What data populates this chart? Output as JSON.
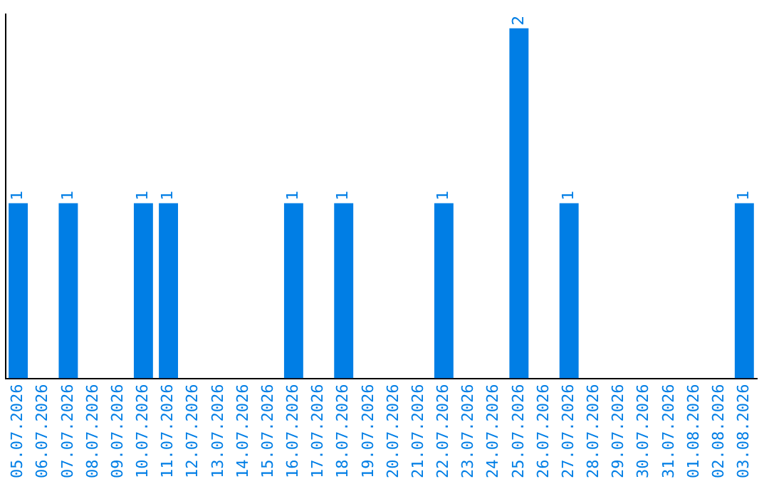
{
  "chart_data": {
    "type": "bar",
    "categories": [
      "05.07.2026",
      "06.07.2026",
      "07.07.2026",
      "08.07.2026",
      "09.07.2026",
      "10.07.2026",
      "11.07.2026",
      "12.07.2026",
      "13.07.2026",
      "14.07.2026",
      "15.07.2026",
      "16.07.2026",
      "17.07.2026",
      "18.07.2026",
      "19.07.2026",
      "20.07.2026",
      "21.07.2026",
      "22.07.2026",
      "23.07.2026",
      "24.07.2026",
      "25.07.2026",
      "26.07.2026",
      "27.07.2026",
      "28.07.2026",
      "29.07.2026",
      "30.07.2026",
      "31.07.2026",
      "01.08.2026",
      "02.08.2026",
      "03.08.2026"
    ],
    "values": [
      1,
      0,
      1,
      0,
      0,
      1,
      1,
      0,
      0,
      0,
      0,
      1,
      0,
      1,
      0,
      0,
      0,
      1,
      0,
      0,
      2,
      0,
      1,
      0,
      0,
      0,
      0,
      0,
      0,
      1
    ],
    "value_labels": [
      "1",
      null,
      "1",
      null,
      null,
      "1",
      "1",
      null,
      null,
      null,
      null,
      "1",
      null,
      "1",
      null,
      null,
      null,
      "1",
      null,
      null,
      "2",
      null,
      "1",
      null,
      null,
      null,
      null,
      null,
      null,
      "1"
    ],
    "color": "#007ee5",
    "ylim": [
      0,
      2.08
    ],
    "tick_labels": "x",
    "grid": false,
    "legend": false
  }
}
